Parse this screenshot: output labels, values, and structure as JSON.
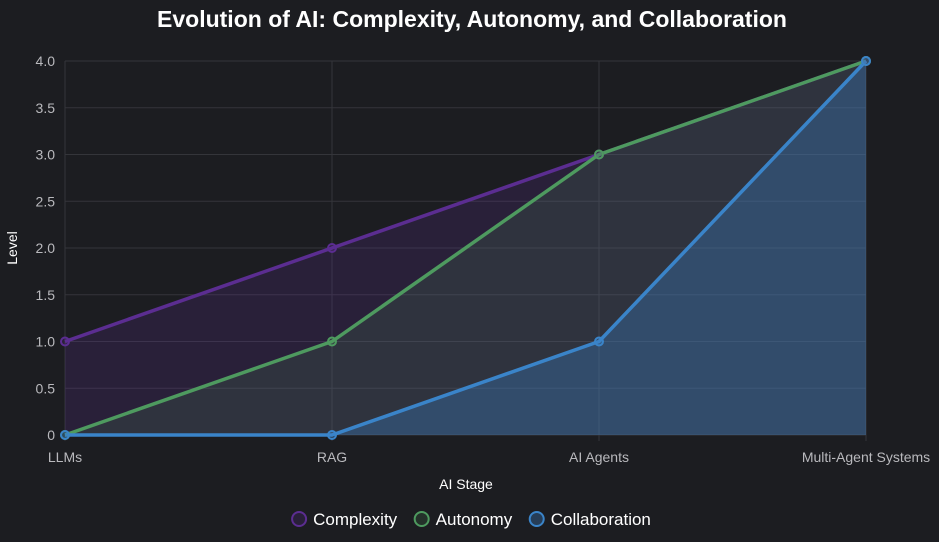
{
  "chart_data": {
    "type": "line",
    "title": "Evolution of AI: Complexity, Autonomy, and Collaboration",
    "xlabel": "AI Stage",
    "ylabel": "Level",
    "categories": [
      "LLMs",
      "RAG",
      "AI Agents",
      "Multi-Agent Systems"
    ],
    "ylim": [
      0,
      4
    ],
    "yticks": [
      "0",
      "0.5",
      "1.0",
      "1.5",
      "2.0",
      "2.5",
      "3.0",
      "3.5",
      "4.0"
    ],
    "grid": true,
    "legend_position": "bottom",
    "series": [
      {
        "name": "Complexity",
        "values": [
          1,
          2,
          3,
          4
        ],
        "color": "#5b2d91",
        "fill": "rgba(91,45,145,0.22)"
      },
      {
        "name": "Autonomy",
        "values": [
          0,
          1,
          3,
          4
        ],
        "color": "#4e9a5f",
        "fill": "rgba(78,154,95,0.16)"
      },
      {
        "name": "Collaboration",
        "values": [
          0,
          0,
          1,
          4
        ],
        "color": "#3a84c9",
        "fill": "rgba(58,132,201,0.32)"
      }
    ]
  }
}
